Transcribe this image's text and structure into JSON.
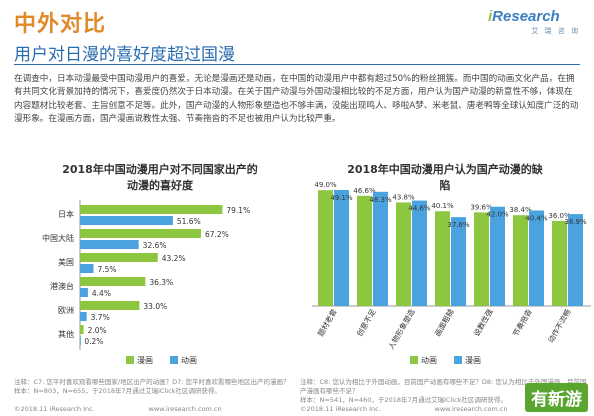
{
  "header": {
    "top_heading": "中外对比",
    "brand_name_i": "i",
    "brand_name_rest": "Research",
    "brand_sub": "艾 瑞 咨 询",
    "title": "用户对日漫的喜好度超过国漫"
  },
  "body_text": "在调查中，日本动漫最受中国动漫用户的喜爱，无论是漫画还是动画，在中国的动漫用户中都有超过50%的粉丝拥簇。而中国的动画文化产品，在拥有共同文化背景加持的情况下，喜爱度仍然次于日本动漫。在关于国产动漫与外国动漫相比较的不足方面，用户认为国产动漫的新意性不够，体现在内容题材比较老套、主旨创意不足等。此外，国产动漫的人物形象塑造也不够丰满，没能出现鸣人、哆啦A梦、米老鼠、唐老鸭等全球认知度广泛的动漫形象。在漫画方面，国产漫画说教性太强、节奏拖沓的不足也被用户认为比较严重。",
  "legend": {
    "manga": "漫画",
    "anime": "动画"
  },
  "colors": {
    "manga": "#8dc63f",
    "anime": "#4aa3df",
    "accent_orange": "#e08a2a",
    "title_blue": "#2a6cb0"
  },
  "chart_data": [
    {
      "type": "bar",
      "orientation": "horizontal",
      "title": "2018年中国动漫用户对不同国家出产的动漫的喜好度",
      "categories": [
        "日本",
        "中国大陆",
        "美国",
        "港澳台",
        "欧洲",
        "其他"
      ],
      "series": [
        {
          "name": "漫画",
          "values": [
            79.1,
            67.2,
            43.2,
            36.3,
            33.0,
            2.0
          ],
          "labels": [
            "79.1%",
            "67.2%",
            "43.2%",
            "36.3%",
            "33.0%",
            "2.0%"
          ]
        },
        {
          "name": "动画",
          "values": [
            51.6,
            32.6,
            7.5,
            4.4,
            3.7,
            0.2
          ],
          "labels": [
            "51.6%",
            "32.6%",
            "7.5%",
            "4.4%",
            "3.7%",
            "0.2%"
          ]
        }
      ],
      "legend": "bottom"
    },
    {
      "type": "bar",
      "orientation": "vertical",
      "title": "2018年中国动漫用户认为国产动漫的缺陷",
      "categories": [
        "题材老套",
        "创意不足",
        "人物形象塑造",
        "画面粗糙",
        "说教性强",
        "节奏拖沓",
        "动作不流畅"
      ],
      "series": [
        {
          "name": "动画",
          "values": [
            49.0,
            46.6,
            43.8,
            40.1,
            39.6,
            38.4,
            36.0
          ],
          "labels": [
            "49.0%",
            "46.6%",
            "43.8%",
            "40.1%",
            "39.6%",
            "38.4%",
            "36.0%"
          ]
        },
        {
          "name": "漫画",
          "values": [
            49.1,
            48.3,
            44.6,
            37.6,
            42.0,
            40.4,
            38.9
          ],
          "labels": [
            "49.1%",
            "48.3%",
            "44.6%",
            "37.6%",
            "42.0%",
            "40.4%",
            "38.9%"
          ]
        }
      ],
      "legend": "bottom"
    }
  ],
  "footnotes": {
    "left": "注释：C7: 您平时喜欢观看哪些国家/地区出产的动画？D7: 您平时喜欢看哪些地区出产的漫画？\n样本：N=803，N=655，于2018年7月通过艾瑞iClick社区调研获得。",
    "right": "注释：C8: 您认为相比于外国动画，目前国产动画有哪些不足？D8: 您认为相比于外国漫画，目前国产漫画有哪些不足？\n样本：N=541，N=460，于2018年7月通过艾瑞iClick社区调研获得。",
    "copyright_left": "©2018.11 iResearch Inc.                          www.iresearch.com.cn",
    "copyright_right": "©2018.11 iResearch Inc.                          www.iresearch.com.cn"
  },
  "watermark": "有新游"
}
